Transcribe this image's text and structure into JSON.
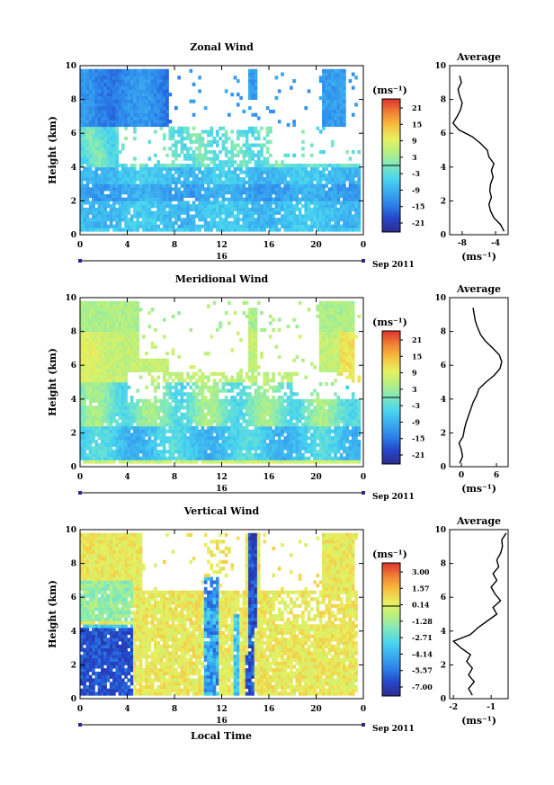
{
  "figure": {
    "time_axis_ticks": [
      "0",
      "4",
      "8",
      "12",
      "16",
      "20",
      "0"
    ],
    "day_label": "16",
    "date_label": "Sep 2011",
    "ylabel": "Height (km)",
    "height_ticks": [
      "0",
      "2",
      "4",
      "6",
      "8",
      "10"
    ],
    "xlabel": "Local Time",
    "average_title": "Average",
    "unit_label": "(ms⁻¹)",
    "colormap": [
      "#2d2d8c",
      "#2445c8",
      "#2a7ee8",
      "#3aaaf0",
      "#48d4f0",
      "#7de8c0",
      "#b6f080",
      "#e8f060",
      "#f8c040",
      "#f08030",
      "#e03030"
    ]
  },
  "chart_data": [
    {
      "type": "heatmap",
      "title": "Zonal Wind",
      "ylabel": "Height (km)",
      "xlabel": "",
      "xlim": [
        0,
        24
      ],
      "ylim": [
        0,
        10
      ],
      "colorbar_unit": "(ms⁻¹)",
      "colorbar_ticks": [
        "21",
        "15",
        "9",
        "3",
        "-3",
        "-9",
        "-15",
        "-21"
      ],
      "colorbar_range": [
        -24,
        24
      ],
      "profile": {
        "title": "Average",
        "xlabel": "(ms⁻¹)",
        "x_ticks": [
          "-8",
          "-4"
        ],
        "xlim": [
          -9.5,
          -2.5
        ],
        "height": [
          0.2,
          0.6,
          1.0,
          1.4,
          1.8,
          2.2,
          2.6,
          3.0,
          3.4,
          3.8,
          4.2,
          4.6,
          5.0,
          5.4,
          5.8,
          6.2,
          6.6,
          7.0,
          7.4,
          7.8,
          8.2,
          8.6,
          9.0,
          9.4
        ],
        "value": [
          -3.0,
          -3.4,
          -4.2,
          -4.6,
          -4.8,
          -4.5,
          -4.7,
          -4.6,
          -4.3,
          -4.5,
          -4.2,
          -4.8,
          -5.0,
          -5.8,
          -6.8,
          -8.4,
          -9.1,
          -8.6,
          -8.2,
          -8.0,
          -8.3,
          -8.5,
          -8.1,
          -8.3
        ]
      }
    },
    {
      "type": "heatmap",
      "title": "Meridional Wind",
      "ylabel": "Height (km)",
      "xlabel": "",
      "xlim": [
        0,
        24
      ],
      "ylim": [
        0,
        10
      ],
      "colorbar_unit": "(ms⁻¹)",
      "colorbar_ticks": [
        "21",
        "15",
        "9",
        "3",
        "-3",
        "-9",
        "-15",
        "-21"
      ],
      "colorbar_range": [
        -24,
        24
      ],
      "profile": {
        "title": "Average",
        "xlabel": "(ms⁻¹)",
        "x_ticks": [
          "0",
          "6"
        ],
        "xlim": [
          -2,
          8
        ],
        "height": [
          0.2,
          0.6,
          1.0,
          1.4,
          1.8,
          2.2,
          2.6,
          3.0,
          3.4,
          3.8,
          4.2,
          4.6,
          5.0,
          5.4,
          5.8,
          6.2,
          6.6,
          7.0,
          7.4,
          7.8,
          8.2,
          8.6,
          9.0,
          9.4
        ],
        "value": [
          -0.3,
          0.2,
          0.0,
          -0.4,
          0.3,
          0.5,
          0.8,
          1.2,
          1.6,
          2.0,
          2.6,
          3.0,
          4.2,
          5.6,
          6.6,
          6.9,
          6.5,
          5.4,
          4.2,
          3.3,
          2.8,
          2.4,
          2.2,
          2.0
        ]
      }
    },
    {
      "type": "heatmap",
      "title": "Vertical Wind",
      "ylabel": "Height (km)",
      "xlabel": "Local Time",
      "xlim": [
        0,
        24
      ],
      "ylim": [
        0,
        10
      ],
      "colorbar_unit": "(ms⁻¹)",
      "colorbar_ticks": [
        "3.00",
        "1.57",
        "0.14",
        "-1.28",
        "-2.71",
        "-4.14",
        "-5.57",
        "-7.00"
      ],
      "colorbar_range": [
        -7.7,
        3.7
      ],
      "profile": {
        "title": "Average",
        "xlabel": "(ms⁻¹)",
        "x_ticks": [
          "-2",
          "-1"
        ],
        "xlim": [
          -2.1,
          -0.55
        ],
        "height": [
          0.2,
          0.6,
          1.0,
          1.4,
          1.8,
          2.2,
          2.6,
          3.0,
          3.4,
          3.8,
          4.2,
          4.6,
          5.0,
          5.4,
          5.8,
          6.2,
          6.6,
          7.0,
          7.4,
          7.8,
          8.2,
          8.6,
          9.0,
          9.4,
          9.8
        ],
        "value": [
          -1.5,
          -1.6,
          -1.45,
          -1.6,
          -1.5,
          -1.65,
          -1.55,
          -1.8,
          -2.0,
          -1.55,
          -1.35,
          -1.1,
          -0.85,
          -0.95,
          -0.75,
          -0.9,
          -1.0,
          -0.85,
          -0.95,
          -0.8,
          -0.85,
          -0.75,
          -0.7,
          -0.72,
          -0.6
        ]
      }
    }
  ]
}
